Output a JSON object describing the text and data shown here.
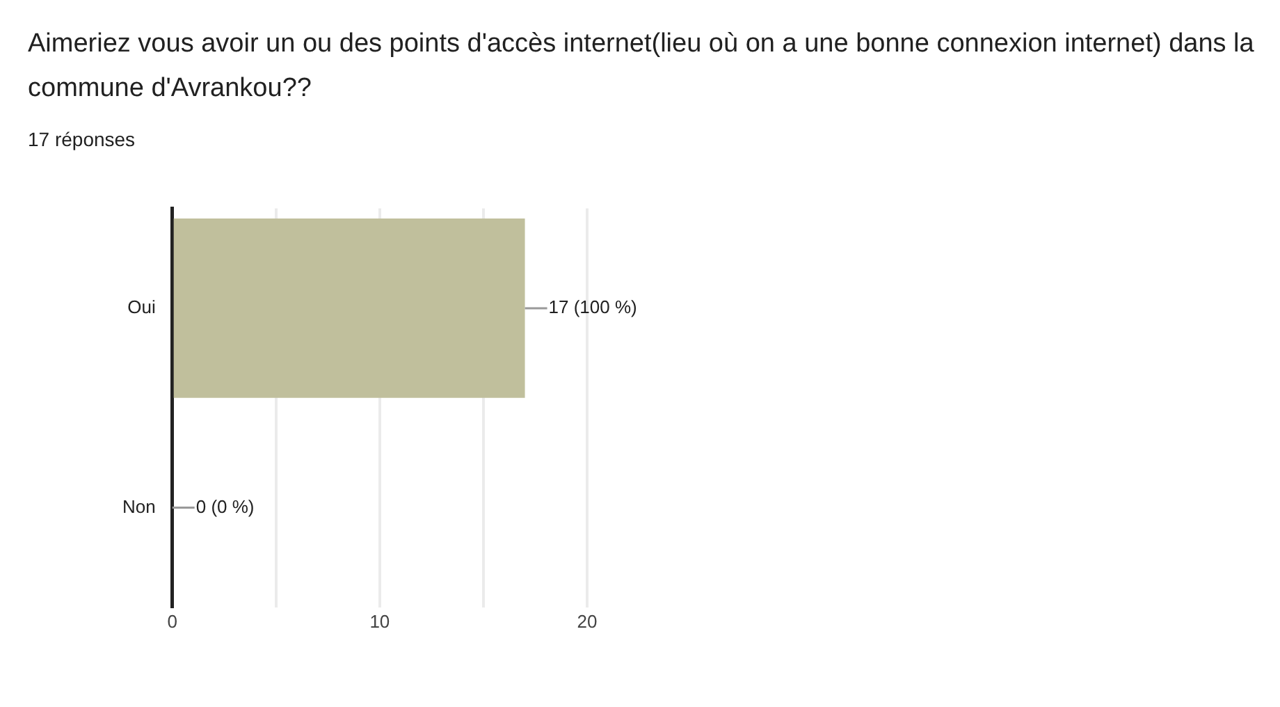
{
  "chart_data": {
    "type": "bar",
    "orientation": "horizontal",
    "title": "Aimeriez vous avoir un ou des points d'accès internet(lieu où on a une bonne connexion internet) dans la commune d'Avrankou??",
    "subtitle": "17 réponses",
    "categories": [
      "Oui",
      "Non"
    ],
    "values": [
      17,
      0
    ],
    "value_labels": [
      "17 (100 %)",
      "0 (0 %)"
    ],
    "color": "#c0bf9c",
    "xlim": [
      0,
      20
    ],
    "xticks": [
      0,
      {
        "value": 5,
        "label": null
      },
      10,
      {
        "value": 15,
        "label": null
      },
      20
    ],
    "grid": "x",
    "legend": false
  }
}
